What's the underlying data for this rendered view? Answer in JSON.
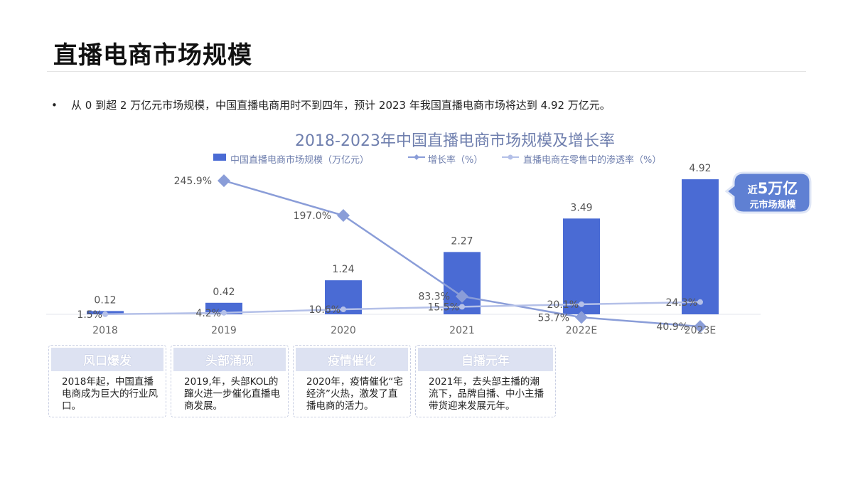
{
  "page": {
    "title": "直播电商市场规模",
    "bullet": "从 0 到超 2 万亿元市场规模，中国直播电商用时不到四年，预计 2023 年我国直播电商市场将达到 4.92 万亿元。"
  },
  "chart_data": {
    "type": "bar",
    "title": "2018-2023年中国直播电商市场规模及增长率",
    "categories": [
      "2018",
      "2019",
      "2020",
      "2021",
      "2022E",
      "2023E"
    ],
    "series": [
      {
        "name": "中国直播电商市场规模（万亿元）",
        "kind": "bar",
        "values": [
          0.12,
          0.42,
          1.24,
          2.27,
          3.49,
          4.92
        ],
        "labels": [
          "0.12",
          "0.42",
          "1.24",
          "2.27",
          "3.49",
          "4.92"
        ],
        "color": "#4a6bd4"
      },
      {
        "name": "增长率（%）",
        "kind": "line",
        "values": [
          null,
          245.9,
          197.0,
          83.3,
          53.7,
          40.9
        ],
        "labels": [
          "",
          "245.9%",
          "197.0%",
          "83.3%",
          "53.7%",
          "40.9%"
        ],
        "color": "#8a9dd8"
      },
      {
        "name": "直播电商在零售中的渗透率（%）",
        "kind": "line",
        "values": [
          1.5,
          4.2,
          10.6,
          15.5,
          20.1,
          24.3
        ],
        "labels": [
          "1.5%",
          "4.2%",
          "10.6%",
          "15.5%",
          "20.1%",
          "24.3%"
        ],
        "color": "#b4c0e8"
      }
    ],
    "callout": {
      "prefix": "近",
      "emphasis": "5万亿",
      "line2": "元市场规模",
      "color": "#5f80d3"
    },
    "grid": false,
    "legend_position": "top"
  },
  "phases": [
    {
      "title": "风口爆发",
      "text": "2018年起，中国直播电商成为巨大的行业风口。"
    },
    {
      "title": "头部涌现",
      "text": "2019,年，头部KOL的蹿火进一步催化直播电商发展。"
    },
    {
      "title": "疫情催化",
      "text": "2020年，疫情催化“宅经济”火热，激发了直播电商的活力。"
    },
    {
      "title": "自播元年",
      "text": "2021年，去头部主播的潮流下，品牌自播、中小主播带货迎来发展元年。"
    }
  ]
}
